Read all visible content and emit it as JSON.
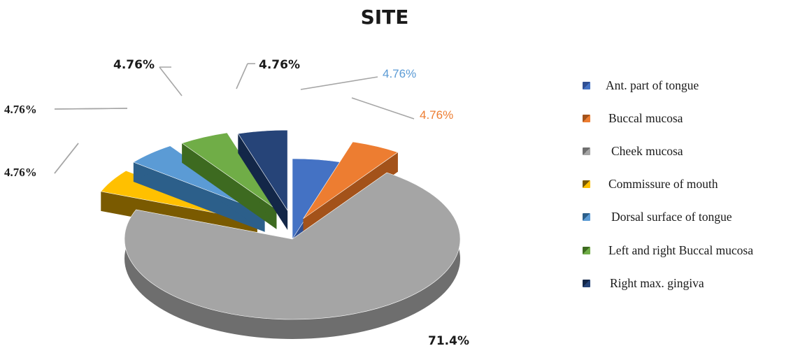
{
  "chart_data": {
    "type": "pie",
    "title": "SITE",
    "slices": [
      {
        "label": "Ant. part of tongue",
        "value": 4.76,
        "data_label": "4.76%",
        "color": "#4472C4",
        "side": "#2F4F93"
      },
      {
        "label": "Buccal mucosa",
        "value": 4.76,
        "data_label": "4.76%",
        "color": "#ED7D31",
        "side": "#A3521A"
      },
      {
        "label": "Cheek mucosa",
        "value": 71.4,
        "data_label": "71.4%",
        "color": "#A5A5A5",
        "side": "#6E6E6E"
      },
      {
        "label": "Commissure of mouth",
        "value": 4.76,
        "data_label": "4.76%",
        "color": "#FFC000",
        "side": "#7A5A00"
      },
      {
        "label": "Dorsal surface of tongue",
        "value": 4.76,
        "data_label": "4.76%",
        "color": "#5B9BD5",
        "side": "#2C5F8A"
      },
      {
        "label": "Left and right Buccal mucosa",
        "value": 4.76,
        "data_label": "4.76%",
        "color": "#70AD47",
        "side": "#3D6A20"
      },
      {
        "label": "Right max. gingiva",
        "value": 4.76,
        "data_label": "4.76%",
        "color": "#264478",
        "side": "#132748"
      }
    ],
    "legend_position": "right",
    "exploded": true,
    "three_d": true
  }
}
